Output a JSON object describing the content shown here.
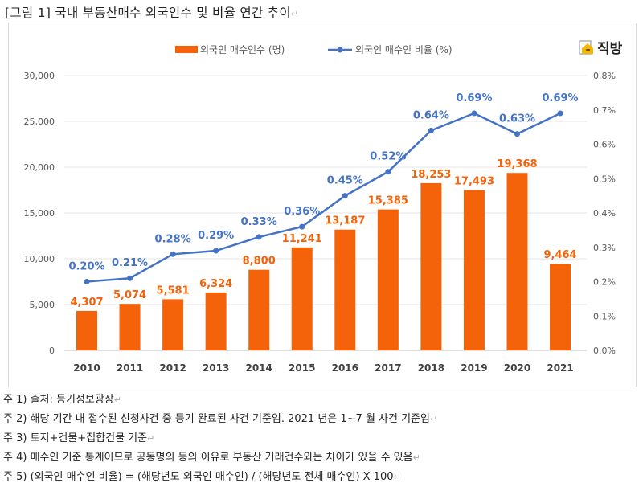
{
  "title": "[그림 1] 국내 부동산매수 외국인수 및 비율 연간 추이",
  "logo": "직방",
  "notes": [
    "주 1) 출처: 등기정보광장",
    "주 2) 해당 기간 내 접수된 신청사건 중 등기 완료된 사건 기준임. 2021 년은 1~7 월 사건 기준임",
    "주 3) 토지+건물+집합건물 기준",
    "주 4) 매수인 기준 통계이므로 공동명의 등의 이유로 부동산 거래건수와는 차이가 있을 수 있음",
    "주 5) (외국인 매수인 비율) = (해당년도 외국인 매수인) / (해당년도 전체 매수인) X 100"
  ],
  "chart_data": {
    "type": "bar+line",
    "categories": [
      "2010",
      "2011",
      "2012",
      "2013",
      "2014",
      "2015",
      "2016",
      "2017",
      "2018",
      "2019",
      "2020",
      "2021"
    ],
    "series": [
      {
        "name": "외국인 매수인수 (명)",
        "type": "bar",
        "axis": "left",
        "color": "#F4630A",
        "values": [
          4307,
          5074,
          5581,
          6324,
          8800,
          11241,
          13187,
          15385,
          18253,
          17493,
          19368,
          9464
        ],
        "labels": [
          "4,307",
          "5,074",
          "5,581",
          "6,324",
          "8,800",
          "11,241",
          "13,187",
          "15,385",
          "18,253",
          "17,493",
          "19,368",
          "9,464"
        ]
      },
      {
        "name": "외국인 매수인 비율 (%)",
        "type": "line",
        "axis": "right",
        "color": "#4472C4",
        "values": [
          0.2,
          0.21,
          0.28,
          0.29,
          0.33,
          0.36,
          0.45,
          0.52,
          0.64,
          0.69,
          0.63,
          0.69
        ],
        "labels": [
          "0.20%",
          "0.21%",
          "0.28%",
          "0.29%",
          "0.33%",
          "0.36%",
          "0.45%",
          "0.52%",
          "0.64%",
          "0.69%",
          "0.63%",
          "0.69%"
        ]
      }
    ],
    "left_axis": {
      "ylim": [
        0,
        30000
      ],
      "ticks": [
        "0",
        "5,000",
        "10,000",
        "15,000",
        "20,000",
        "25,000",
        "30,000"
      ]
    },
    "right_axis": {
      "ylim": [
        0,
        0.8
      ],
      "ticks": [
        "0.0%",
        "0.1%",
        "0.2%",
        "0.3%",
        "0.4%",
        "0.5%",
        "0.6%",
        "0.7%",
        "0.8%"
      ]
    },
    "grid": true,
    "legend": "top"
  }
}
